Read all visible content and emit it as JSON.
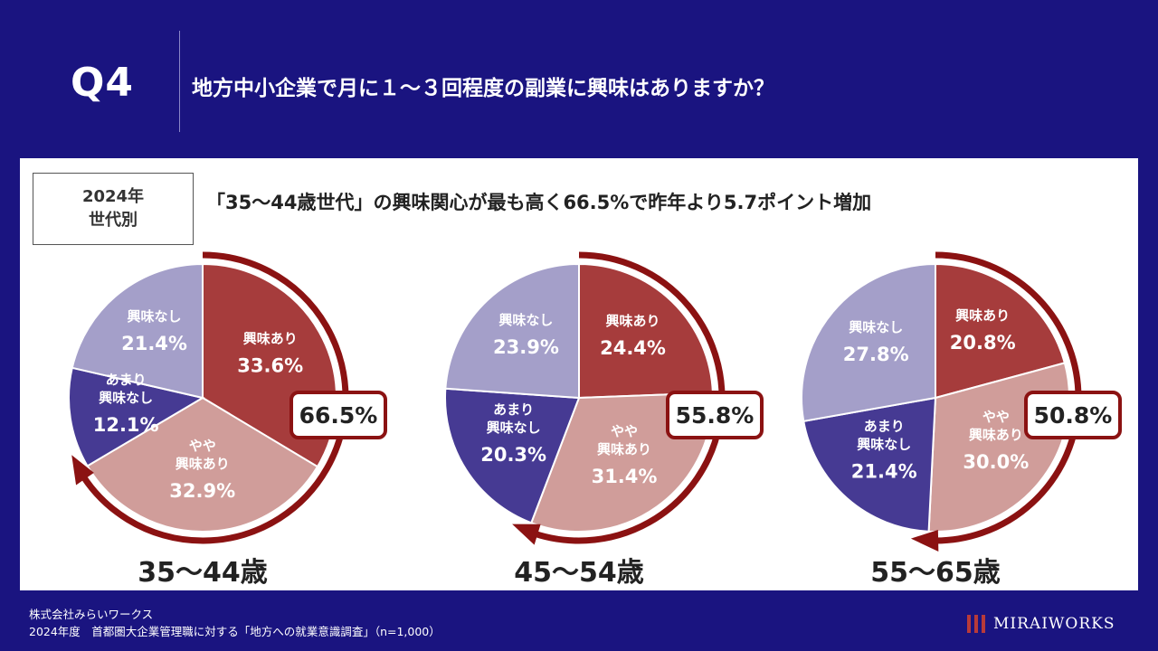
{
  "header": {
    "q_label": "Q4",
    "question": "地方中小企業で月に１～３回程度の副業に興味はありますか？"
  },
  "tag": {
    "line1": "2024年",
    "line2": "世代別"
  },
  "headline": "「35～44歳世代」の興味関心が最も高く66.5%で昨年より5.7ポイント増加",
  "colors": {
    "background": "#1a1480",
    "interested": "#a63c3c",
    "somewhat_interested": "#d09d9a",
    "not_very_interested": "#463a93",
    "not_interested": "#a49fc9",
    "arrow": "#8b1212"
  },
  "chart_data": [
    {
      "type": "pie",
      "title": "35～44歳",
      "categories": [
        "興味あり",
        "やや興味あり",
        "あまり興味なし",
        "興味なし"
      ],
      "values": [
        33.6,
        32.9,
        12.1,
        21.4
      ],
      "value_labels": [
        "33.6%",
        "32.9%",
        "12.1%",
        "21.4%"
      ],
      "total_interested": "66.5%"
    },
    {
      "type": "pie",
      "title": "45～54歳",
      "categories": [
        "興味あり",
        "やや興味あり",
        "あまり興味なし",
        "興味なし"
      ],
      "values": [
        24.4,
        31.4,
        20.3,
        23.9
      ],
      "value_labels": [
        "24.4%",
        "31.4%",
        "20.3%",
        "23.9%"
      ],
      "total_interested": "55.8%"
    },
    {
      "type": "pie",
      "title": "55～65歳",
      "categories": [
        "興味あり",
        "やや興味あり",
        "あまり興味なし",
        "興味なし"
      ],
      "values": [
        20.8,
        30.0,
        21.4,
        27.8
      ],
      "value_labels": [
        "20.8%",
        "30.0%",
        "21.4%",
        "27.8%"
      ],
      "total_interested": "50.8%"
    }
  ],
  "footer": {
    "company": "株式会社みらいワークス",
    "source": "2024年度　首都圏大企業管理職に対する「地方への就業意識調査」（n=1,000）"
  },
  "logo": {
    "text": "MIRAIWORKS",
    "icon": "mirai-logo-icon"
  }
}
